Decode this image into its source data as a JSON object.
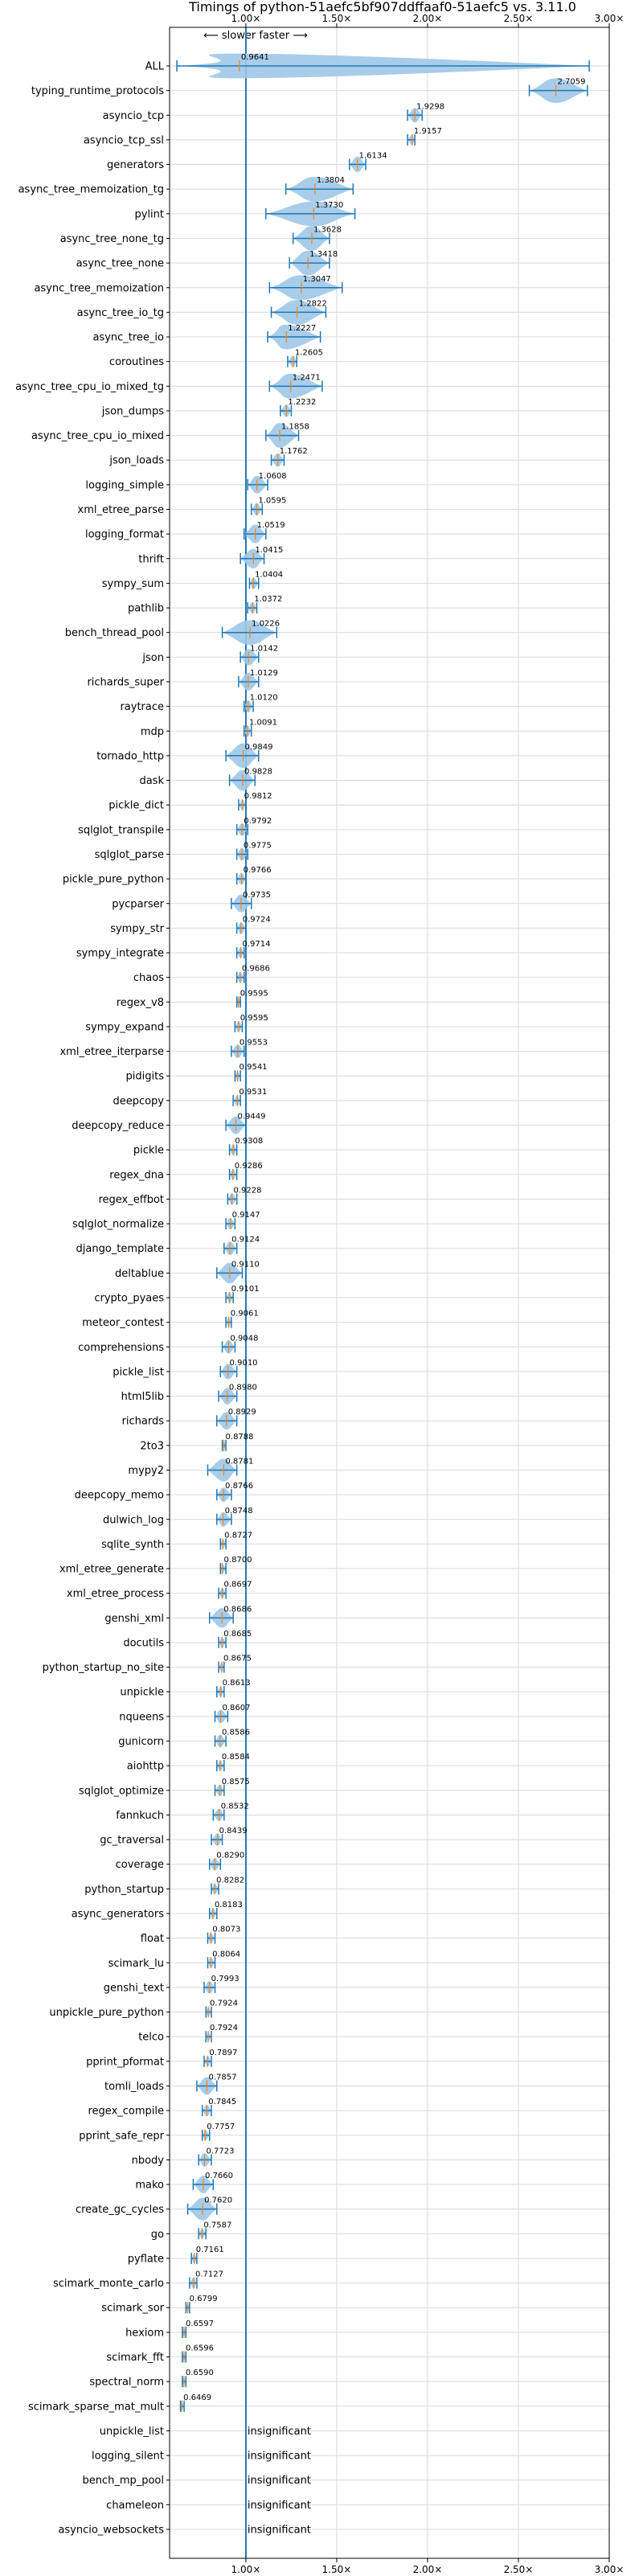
{
  "chart_data": {
    "type": "violin",
    "title": "Timings of python-51aefc5bf907ddffaaf0-51aefc5 vs. 3.11.0",
    "direction_note": "⟵ slower  faster ⟶",
    "xlim": [
      0.58,
      3.0
    ],
    "x_ticks": [
      {
        "value": 1.0,
        "label": "1.00×"
      },
      {
        "value": 1.5,
        "label": "1.50×"
      },
      {
        "value": 2.0,
        "label": "2.00×"
      },
      {
        "value": 2.5,
        "label": "2.50×"
      },
      {
        "value": 3.0,
        "label": "3.00×"
      }
    ],
    "grid": true,
    "colors": {
      "violin": "#9ec8e8",
      "whisker": "#1f77b4",
      "median": "#ff7f0e",
      "ref_line": "#1f77b4",
      "grid": "#d9d9d9"
    },
    "benchmarks": [
      {
        "name": "ALL",
        "value": 0.9641,
        "label": "0.9641",
        "lo": 0.62,
        "hi": 2.89,
        "sig": true
      },
      {
        "name": "typing_runtime_protocols",
        "value": 2.7059,
        "label": "2.7059",
        "lo": 2.56,
        "hi": 2.88,
        "sig": true
      },
      {
        "name": "asyncio_tcp",
        "value": 1.9298,
        "label": "1.9298",
        "lo": 1.89,
        "hi": 1.97,
        "sig": true
      },
      {
        "name": "asyncio_tcp_ssl",
        "value": 1.9157,
        "label": "1.9157",
        "lo": 1.89,
        "hi": 1.93,
        "sig": true
      },
      {
        "name": "generators",
        "value": 1.6134,
        "label": "1.6134",
        "lo": 1.57,
        "hi": 1.66,
        "sig": true
      },
      {
        "name": "async_tree_memoization_tg",
        "value": 1.3804,
        "label": "1.3804",
        "lo": 1.22,
        "hi": 1.59,
        "sig": true
      },
      {
        "name": "pylint",
        "value": 1.373,
        "label": "1.3730",
        "lo": 1.11,
        "hi": 1.6,
        "sig": true
      },
      {
        "name": "async_tree_none_tg",
        "value": 1.3628,
        "label": "1.3628",
        "lo": 1.26,
        "hi": 1.46,
        "sig": true
      },
      {
        "name": "async_tree_none",
        "value": 1.3418,
        "label": "1.3418",
        "lo": 1.24,
        "hi": 1.46,
        "sig": true
      },
      {
        "name": "async_tree_memoization",
        "value": 1.3047,
        "label": "1.3047",
        "lo": 1.13,
        "hi": 1.53,
        "sig": true
      },
      {
        "name": "async_tree_io_tg",
        "value": 1.2822,
        "label": "1.2822",
        "lo": 1.14,
        "hi": 1.44,
        "sig": true
      },
      {
        "name": "async_tree_io",
        "value": 1.2227,
        "label": "1.2227",
        "lo": 1.12,
        "hi": 1.41,
        "sig": true
      },
      {
        "name": "coroutines",
        "value": 1.2605,
        "label": "1.2605",
        "lo": 1.23,
        "hi": 1.28,
        "sig": true
      },
      {
        "name": "async_tree_cpu_io_mixed_tg",
        "value": 1.2471,
        "label": "1.2471",
        "lo": 1.13,
        "hi": 1.42,
        "sig": true
      },
      {
        "name": "json_dumps",
        "value": 1.2232,
        "label": "1.2232",
        "lo": 1.19,
        "hi": 1.25,
        "sig": true
      },
      {
        "name": "async_tree_cpu_io_mixed",
        "value": 1.1858,
        "label": "1.1858",
        "lo": 1.11,
        "hi": 1.29,
        "sig": true
      },
      {
        "name": "json_loads",
        "value": 1.1762,
        "label": "1.1762",
        "lo": 1.14,
        "hi": 1.21,
        "sig": true
      },
      {
        "name": "logging_simple",
        "value": 1.0608,
        "label": "1.0608",
        "lo": 1.01,
        "hi": 1.12,
        "sig": true
      },
      {
        "name": "xml_etree_parse",
        "value": 1.0595,
        "label": "1.0595",
        "lo": 1.03,
        "hi": 1.09,
        "sig": true
      },
      {
        "name": "logging_format",
        "value": 1.0519,
        "label": "1.0519",
        "lo": 0.99,
        "hi": 1.11,
        "sig": true
      },
      {
        "name": "thrift",
        "value": 1.0415,
        "label": "1.0415",
        "lo": 0.97,
        "hi": 1.1,
        "sig": true
      },
      {
        "name": "sympy_sum",
        "value": 1.0404,
        "label": "1.0404",
        "lo": 1.02,
        "hi": 1.07,
        "sig": true
      },
      {
        "name": "pathlib",
        "value": 1.0372,
        "label": "1.0372",
        "lo": 1.01,
        "hi": 1.06,
        "sig": true
      },
      {
        "name": "bench_thread_pool",
        "value": 1.0226,
        "label": "1.0226",
        "lo": 0.87,
        "hi": 1.17,
        "sig": true
      },
      {
        "name": "json",
        "value": 1.0142,
        "label": "1.0142",
        "lo": 0.97,
        "hi": 1.07,
        "sig": true
      },
      {
        "name": "richards_super",
        "value": 1.0129,
        "label": "1.0129",
        "lo": 0.96,
        "hi": 1.07,
        "sig": true
      },
      {
        "name": "raytrace",
        "value": 1.012,
        "label": "1.0120",
        "lo": 0.99,
        "hi": 1.04,
        "sig": true
      },
      {
        "name": "mdp",
        "value": 1.0091,
        "label": "1.0091",
        "lo": 0.99,
        "hi": 1.03,
        "sig": true
      },
      {
        "name": "tornado_http",
        "value": 0.9849,
        "label": "0.9849",
        "lo": 0.89,
        "hi": 1.07,
        "sig": true
      },
      {
        "name": "dask",
        "value": 0.9828,
        "label": "0.9828",
        "lo": 0.91,
        "hi": 1.05,
        "sig": true
      },
      {
        "name": "pickle_dict",
        "value": 0.9812,
        "label": "0.9812",
        "lo": 0.96,
        "hi": 1.0,
        "sig": true
      },
      {
        "name": "sqlglot_transpile",
        "value": 0.9792,
        "label": "0.9792",
        "lo": 0.95,
        "hi": 1.01,
        "sig": true
      },
      {
        "name": "sqlglot_parse",
        "value": 0.9775,
        "label": "0.9775",
        "lo": 0.95,
        "hi": 1.01,
        "sig": true
      },
      {
        "name": "pickle_pure_python",
        "value": 0.9766,
        "label": "0.9766",
        "lo": 0.95,
        "hi": 1.0,
        "sig": true
      },
      {
        "name": "pycparser",
        "value": 0.9735,
        "label": "0.9735",
        "lo": 0.92,
        "hi": 1.03,
        "sig": true
      },
      {
        "name": "sympy_str",
        "value": 0.9724,
        "label": "0.9724",
        "lo": 0.95,
        "hi": 1.0,
        "sig": true
      },
      {
        "name": "sympy_integrate",
        "value": 0.9714,
        "label": "0.9714",
        "lo": 0.95,
        "hi": 0.99,
        "sig": true
      },
      {
        "name": "chaos",
        "value": 0.9686,
        "label": "0.9686",
        "lo": 0.95,
        "hi": 0.99,
        "sig": true
      },
      {
        "name": "regex_v8",
        "value": 0.9595,
        "label": "0.9595",
        "lo": 0.95,
        "hi": 0.97,
        "sig": true
      },
      {
        "name": "sympy_expand",
        "value": 0.9595,
        "label": "0.9595",
        "lo": 0.94,
        "hi": 0.98,
        "sig": true
      },
      {
        "name": "xml_etree_iterparse",
        "value": 0.9553,
        "label": "0.9553",
        "lo": 0.92,
        "hi": 0.99,
        "sig": true
      },
      {
        "name": "pidigits",
        "value": 0.9541,
        "label": "0.9541",
        "lo": 0.94,
        "hi": 0.97,
        "sig": true
      },
      {
        "name": "deepcopy",
        "value": 0.9531,
        "label": "0.9531",
        "lo": 0.93,
        "hi": 0.97,
        "sig": true
      },
      {
        "name": "deepcopy_reduce",
        "value": 0.9449,
        "label": "0.9449",
        "lo": 0.89,
        "hi": 1.0,
        "sig": true
      },
      {
        "name": "pickle",
        "value": 0.9308,
        "label": "0.9308",
        "lo": 0.91,
        "hi": 0.95,
        "sig": true
      },
      {
        "name": "regex_dna",
        "value": 0.9286,
        "label": "0.9286",
        "lo": 0.91,
        "hi": 0.95,
        "sig": true
      },
      {
        "name": "regex_effbot",
        "value": 0.9228,
        "label": "0.9228",
        "lo": 0.9,
        "hi": 0.95,
        "sig": true
      },
      {
        "name": "sqlglot_normalize",
        "value": 0.9147,
        "label": "0.9147",
        "lo": 0.89,
        "hi": 0.94,
        "sig": true
      },
      {
        "name": "django_template",
        "value": 0.9124,
        "label": "0.9124",
        "lo": 0.88,
        "hi": 0.95,
        "sig": true
      },
      {
        "name": "deltablue",
        "value": 0.911,
        "label": "0.9110",
        "lo": 0.84,
        "hi": 0.98,
        "sig": true
      },
      {
        "name": "crypto_pyaes",
        "value": 0.9101,
        "label": "0.9101",
        "lo": 0.89,
        "hi": 0.93,
        "sig": true
      },
      {
        "name": "meteor_contest",
        "value": 0.9061,
        "label": "0.9061",
        "lo": 0.89,
        "hi": 0.92,
        "sig": true
      },
      {
        "name": "comprehensions",
        "value": 0.9048,
        "label": "0.9048",
        "lo": 0.87,
        "hi": 0.94,
        "sig": true
      },
      {
        "name": "pickle_list",
        "value": 0.901,
        "label": "0.9010",
        "lo": 0.86,
        "hi": 0.95,
        "sig": true
      },
      {
        "name": "html5lib",
        "value": 0.898,
        "label": "0.8980",
        "lo": 0.85,
        "hi": 0.95,
        "sig": true
      },
      {
        "name": "richards",
        "value": 0.8929,
        "label": "0.8929",
        "lo": 0.84,
        "hi": 0.95,
        "sig": true
      },
      {
        "name": "2to3",
        "value": 0.8788,
        "label": "0.8788",
        "lo": 0.87,
        "hi": 0.89,
        "sig": true
      },
      {
        "name": "mypy2",
        "value": 0.8781,
        "label": "0.8781",
        "lo": 0.79,
        "hi": 0.95,
        "sig": true
      },
      {
        "name": "deepcopy_memo",
        "value": 0.8766,
        "label": "0.8766",
        "lo": 0.84,
        "hi": 0.92,
        "sig": true
      },
      {
        "name": "dulwich_log",
        "value": 0.8748,
        "label": "0.8748",
        "lo": 0.84,
        "hi": 0.92,
        "sig": true
      },
      {
        "name": "sqlite_synth",
        "value": 0.8727,
        "label": "0.8727",
        "lo": 0.86,
        "hi": 0.89,
        "sig": true
      },
      {
        "name": "xml_etree_generate",
        "value": 0.87,
        "label": "0.8700",
        "lo": 0.86,
        "hi": 0.89,
        "sig": true
      },
      {
        "name": "xml_etree_process",
        "value": 0.8697,
        "label": "0.8697",
        "lo": 0.85,
        "hi": 0.89,
        "sig": true
      },
      {
        "name": "genshi_xml",
        "value": 0.8686,
        "label": "0.8686",
        "lo": 0.8,
        "hi": 0.93,
        "sig": true
      },
      {
        "name": "docutils",
        "value": 0.8685,
        "label": "0.8685",
        "lo": 0.85,
        "hi": 0.89,
        "sig": true
      },
      {
        "name": "python_startup_no_site",
        "value": 0.8675,
        "label": "0.8675",
        "lo": 0.85,
        "hi": 0.88,
        "sig": true
      },
      {
        "name": "unpickle",
        "value": 0.8613,
        "label": "0.8613",
        "lo": 0.84,
        "hi": 0.88,
        "sig": true
      },
      {
        "name": "nqueens",
        "value": 0.8607,
        "label": "0.8607",
        "lo": 0.83,
        "hi": 0.9,
        "sig": true
      },
      {
        "name": "gunicorn",
        "value": 0.8586,
        "label": "0.8586",
        "lo": 0.83,
        "hi": 0.89,
        "sig": true
      },
      {
        "name": "aiohttp",
        "value": 0.8584,
        "label": "0.8584",
        "lo": 0.84,
        "hi": 0.88,
        "sig": true
      },
      {
        "name": "sqlglot_optimize",
        "value": 0.8575,
        "label": "0.8575",
        "lo": 0.83,
        "hi": 0.88,
        "sig": true
      },
      {
        "name": "fannkuch",
        "value": 0.8532,
        "label": "0.8532",
        "lo": 0.82,
        "hi": 0.88,
        "sig": true
      },
      {
        "name": "gc_traversal",
        "value": 0.8439,
        "label": "0.8439",
        "lo": 0.81,
        "hi": 0.87,
        "sig": true
      },
      {
        "name": "coverage",
        "value": 0.829,
        "label": "0.8290",
        "lo": 0.8,
        "hi": 0.86,
        "sig": true
      },
      {
        "name": "python_startup",
        "value": 0.8282,
        "label": "0.8282",
        "lo": 0.81,
        "hi": 0.85,
        "sig": true
      },
      {
        "name": "async_generators",
        "value": 0.8183,
        "label": "0.8183",
        "lo": 0.8,
        "hi": 0.84,
        "sig": true
      },
      {
        "name": "float",
        "value": 0.8073,
        "label": "0.8073",
        "lo": 0.79,
        "hi": 0.83,
        "sig": true
      },
      {
        "name": "scimark_lu",
        "value": 0.8064,
        "label": "0.8064",
        "lo": 0.79,
        "hi": 0.83,
        "sig": true
      },
      {
        "name": "genshi_text",
        "value": 0.7993,
        "label": "0.7993",
        "lo": 0.77,
        "hi": 0.83,
        "sig": true
      },
      {
        "name": "unpickle_pure_python",
        "value": 0.7924,
        "label": "0.7924",
        "lo": 0.78,
        "hi": 0.81,
        "sig": true
      },
      {
        "name": "telco",
        "value": 0.7924,
        "label": "0.7924",
        "lo": 0.78,
        "hi": 0.81,
        "sig": true
      },
      {
        "name": "pprint_pformat",
        "value": 0.7897,
        "label": "0.7897",
        "lo": 0.77,
        "hi": 0.81,
        "sig": true
      },
      {
        "name": "tomli_loads",
        "value": 0.7857,
        "label": "0.7857",
        "lo": 0.73,
        "hi": 0.84,
        "sig": true
      },
      {
        "name": "regex_compile",
        "value": 0.7845,
        "label": "0.7845",
        "lo": 0.76,
        "hi": 0.81,
        "sig": true
      },
      {
        "name": "pprint_safe_repr",
        "value": 0.7757,
        "label": "0.7757",
        "lo": 0.76,
        "hi": 0.8,
        "sig": true
      },
      {
        "name": "nbody",
        "value": 0.7723,
        "label": "0.7723",
        "lo": 0.74,
        "hi": 0.81,
        "sig": true
      },
      {
        "name": "mako",
        "value": 0.766,
        "label": "0.7660",
        "lo": 0.71,
        "hi": 0.82,
        "sig": true
      },
      {
        "name": "create_gc_cycles",
        "value": 0.762,
        "label": "0.7620",
        "lo": 0.68,
        "hi": 0.84,
        "sig": true
      },
      {
        "name": "go",
        "value": 0.7587,
        "label": "0.7587",
        "lo": 0.74,
        "hi": 0.78,
        "sig": true
      },
      {
        "name": "pyflate",
        "value": 0.7161,
        "label": "0.7161",
        "lo": 0.7,
        "hi": 0.73,
        "sig": true
      },
      {
        "name": "scimark_monte_carlo",
        "value": 0.7127,
        "label": "0.7127",
        "lo": 0.69,
        "hi": 0.73,
        "sig": true
      },
      {
        "name": "scimark_sor",
        "value": 0.6799,
        "label": "0.6799",
        "lo": 0.67,
        "hi": 0.69,
        "sig": true
      },
      {
        "name": "hexiom",
        "value": 0.6597,
        "label": "0.6597",
        "lo": 0.65,
        "hi": 0.67,
        "sig": true
      },
      {
        "name": "scimark_fft",
        "value": 0.6596,
        "label": "0.6596",
        "lo": 0.65,
        "hi": 0.67,
        "sig": true
      },
      {
        "name": "spectral_norm",
        "value": 0.659,
        "label": "0.6590",
        "lo": 0.65,
        "hi": 0.67,
        "sig": true
      },
      {
        "name": "scimark_sparse_mat_mult",
        "value": 0.6469,
        "label": "0.6469",
        "lo": 0.64,
        "hi": 0.66,
        "sig": true
      },
      {
        "name": "unpickle_list",
        "label": "insignificant",
        "sig": false
      },
      {
        "name": "logging_silent",
        "label": "insignificant",
        "sig": false
      },
      {
        "name": "bench_mp_pool",
        "label": "insignificant",
        "sig": false
      },
      {
        "name": "chameleon",
        "label": "insignificant",
        "sig": false
      },
      {
        "name": "asyncio_websockets",
        "label": "insignificant",
        "sig": false
      }
    ]
  }
}
